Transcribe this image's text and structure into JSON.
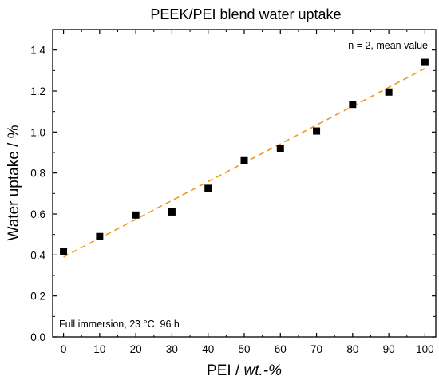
{
  "chart_data": {
    "type": "scatter",
    "title": "PEEK/PEI blend water uptake",
    "xlabel_main": "PEI  /  ",
    "xlabel_unit": "wt.-%",
    "ylabel": "Water uptake  /  %",
    "xlim": [
      -3,
      103
    ],
    "ylim": [
      0,
      1.5
    ],
    "xticks": [
      0,
      10,
      20,
      30,
      40,
      50,
      60,
      70,
      80,
      90,
      100
    ],
    "yticks": [
      0.0,
      0.2,
      0.4,
      0.6,
      0.8,
      1.0,
      1.2,
      1.4
    ],
    "xtick_labels": [
      "0",
      "10",
      "20",
      "30",
      "40",
      "50",
      "60",
      "70",
      "80",
      "90",
      "100"
    ],
    "ytick_labels": [
      "0.0",
      "0.2",
      "0.4",
      "0.6",
      "0.8",
      "1.0",
      "1.2",
      "1.4"
    ],
    "grid": false,
    "series": [
      {
        "marker": "square",
        "color": "#000000",
        "x": [
          0,
          10,
          20,
          30,
          40,
          50,
          60,
          70,
          80,
          90,
          100
        ],
        "y": [
          0.415,
          0.49,
          0.595,
          0.61,
          0.725,
          0.86,
          0.92,
          1.005,
          1.135,
          1.195,
          1.34
        ]
      }
    ],
    "trendline": {
      "style": "dashed",
      "color": "#f0961e",
      "x": [
        0,
        100
      ],
      "y": [
        0.39,
        1.31
      ]
    },
    "annotations": {
      "top_right": "n = 2, mean value",
      "bottom_left": "Full immersion, 23 °C,  96 h"
    }
  }
}
